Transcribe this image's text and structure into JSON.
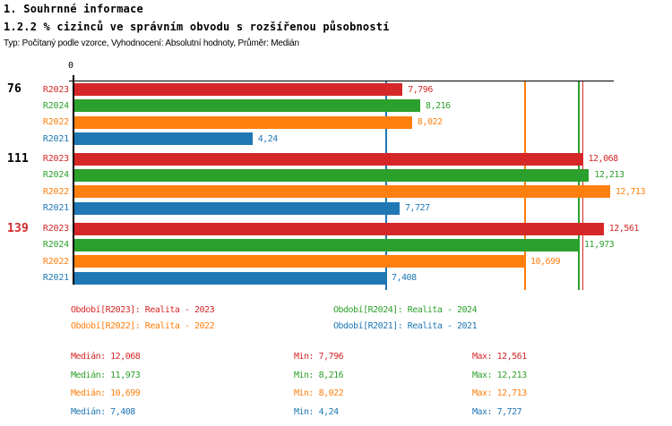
{
  "header": {
    "title1": "1. Souhrnné informace",
    "title2": "1.2.2 % cizinců ve správním obvodu s rozšířenou působností",
    "subtitle": "Typ: Počítaný podle vzorce, Vyhodnocení: Absolutní hodnoty, Průměr: Medián"
  },
  "chart_data": {
    "type": "bar",
    "orientation": "horizontal",
    "title": "1.2.2 % cizinců ve správním obvodu s rozšířenou působností",
    "x_axis": {
      "origin_label": "0",
      "xlim": [
        0,
        12.8
      ],
      "gridlines": false
    },
    "categories": [
      "76",
      "111",
      "139"
    ],
    "series_order": [
      "R2023",
      "R2024",
      "R2022",
      "R2021"
    ],
    "series_colors": {
      "R2023": "#d62728",
      "R2024": "#2ca02c",
      "R2022": "#ff7f0e",
      "R2021": "#1f77b4"
    },
    "groups": [
      {
        "label": "76",
        "label_color": "#000000",
        "bars": [
          {
            "series": "R2023",
            "value": 7.796,
            "display": "7,796"
          },
          {
            "series": "R2024",
            "value": 8.216,
            "display": "8,216"
          },
          {
            "series": "R2022",
            "value": 8.022,
            "display": "8,022"
          },
          {
            "series": "R2021",
            "value": 4.24,
            "display": "4,24"
          }
        ]
      },
      {
        "label": "111",
        "label_color": "#000000",
        "bars": [
          {
            "series": "R2023",
            "value": 12.068,
            "display": "12,068"
          },
          {
            "series": "R2024",
            "value": 12.213,
            "display": "12,213"
          },
          {
            "series": "R2022",
            "value": 12.713,
            "display": "12,713"
          },
          {
            "series": "R2021",
            "value": 7.727,
            "display": "7,727"
          }
        ]
      },
      {
        "label": "139",
        "label_color": "#d62728",
        "bars": [
          {
            "series": "R2023",
            "value": 12.561,
            "display": "12,561"
          },
          {
            "series": "R2024",
            "value": 11.973,
            "display": "11,973"
          },
          {
            "series": "R2022",
            "value": 10.699,
            "display": "10,699"
          },
          {
            "series": "R2021",
            "value": 7.408,
            "display": "7,408"
          }
        ]
      }
    ],
    "median_lines": [
      {
        "series": "R2023",
        "value": 12.068
      },
      {
        "series": "R2024",
        "value": 11.973
      },
      {
        "series": "R2022",
        "value": 10.699
      },
      {
        "series": "R2021",
        "value": 7.408
      }
    ]
  },
  "legend": {
    "items": [
      {
        "series": "R2023",
        "label": "Období[R2023]: Realita - 2023"
      },
      {
        "series": "R2024",
        "label": "Období[R2024]: Realita - 2024"
      },
      {
        "series": "R2022",
        "label": "Období[R2022]: Realita - 2022"
      },
      {
        "series": "R2021",
        "label": "Období[R2021]: Realita - 2021"
      }
    ]
  },
  "stats": {
    "rows": [
      {
        "series": "R2023",
        "median_text": "Medián: 12,068",
        "min_text": "Min: 7,796",
        "max_text": "Max: 12,561"
      },
      {
        "series": "R2024",
        "median_text": "Medián: 11,973",
        "min_text": "Min: 8,216",
        "max_text": "Max: 12,213"
      },
      {
        "series": "R2022",
        "median_text": "Medián: 10,699",
        "min_text": "Min: 8,022",
        "max_text": "Max: 12,713"
      },
      {
        "series": "R2021",
        "median_text": "Medián: 7,408",
        "min_text": "Min: 4,24",
        "max_text": "Max: 7,727"
      }
    ]
  }
}
